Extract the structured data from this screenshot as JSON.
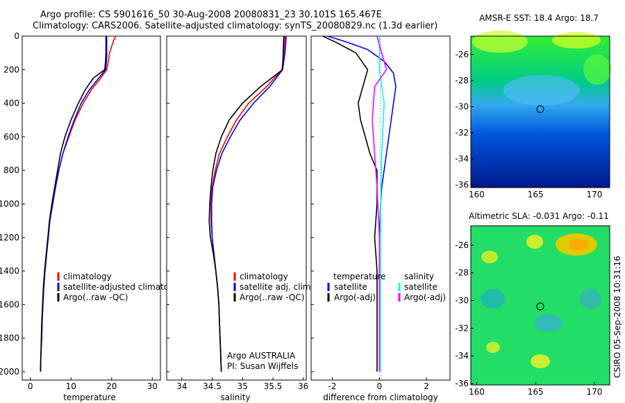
{
  "header": {
    "line1": "Argo profile: CS 5901616_50 30-Aug-2008 20080831_23 30.101S 165.467E",
    "line2": "Climatology: CARS2006. Satellite-adjusted climatology: synTS_20080829.nc (1.3d earlier)"
  },
  "side_label": "CSIRO 05-Sep-2008 10:31:16",
  "colors": {
    "climatology": "#ff0000",
    "satellite": "#0000ff",
    "argo": "#000000",
    "magenta": "#ff00ff",
    "cyan": "#00ffff"
  },
  "chart_data": [
    {
      "type": "line",
      "xlabel": "temperature",
      "xlim": [
        -2,
        32
      ],
      "xticks": [
        0,
        10,
        20,
        30
      ],
      "ylim": [
        0,
        2050
      ],
      "yticks": [
        0,
        200,
        400,
        600,
        800,
        1000,
        1200,
        1400,
        1600,
        1800,
        2000
      ],
      "legend": [
        "climatology",
        "satellite-adjusted climatology",
        "Argo(..raw -QC)"
      ],
      "series": [
        {
          "name": "climatology",
          "color": "red",
          "points": [
            [
              21,
              0
            ],
            [
              20.5,
              25
            ],
            [
              20,
              60
            ],
            [
              19.5,
              100
            ],
            [
              19.2,
              150
            ],
            [
              18.8,
              200
            ],
            [
              17,
              260
            ],
            [
              15,
              320
            ],
            [
              13,
              400
            ],
            [
              11,
              500
            ],
            [
              9.5,
              600
            ],
            [
              8,
              700
            ],
            [
              7,
              800
            ],
            [
              6.2,
              900
            ],
            [
              5.5,
              1000
            ],
            [
              4.8,
              1100
            ],
            [
              4.4,
              1200
            ],
            [
              4,
              1300
            ],
            [
              3.6,
              1400
            ],
            [
              3.3,
              1500
            ],
            [
              3.1,
              1600
            ],
            [
              2.9,
              1700
            ],
            [
              2.8,
              1800
            ],
            [
              2.6,
              1900
            ],
            [
              2.5,
              2000
            ]
          ]
        },
        {
          "name": "satellite-adjusted climatology",
          "color": "blue",
          "points": [
            [
              18.8,
              0
            ],
            [
              18.8,
              40
            ],
            [
              18.8,
              80
            ],
            [
              18.8,
              120
            ],
            [
              18.7,
              160
            ],
            [
              18.5,
              200
            ],
            [
              16.5,
              260
            ],
            [
              14.5,
              320
            ],
            [
              12.5,
              400
            ],
            [
              10.8,
              500
            ],
            [
              9.3,
              600
            ],
            [
              8,
              700
            ],
            [
              7,
              800
            ],
            [
              6.2,
              900
            ],
            [
              5.5,
              1000
            ],
            [
              4.8,
              1100
            ],
            [
              4.4,
              1200
            ],
            [
              4,
              1300
            ],
            [
              3.6,
              1400
            ],
            [
              3.3,
              1500
            ],
            [
              3.1,
              1600
            ],
            [
              2.9,
              1700
            ],
            [
              2.8,
              1800
            ],
            [
              2.6,
              1900
            ],
            [
              2.5,
              2000
            ]
          ]
        },
        {
          "name": "Argo(..raw -QC)",
          "color": "black",
          "points": [
            [
              18.6,
              0
            ],
            [
              18.6,
              50
            ],
            [
              18.6,
              100
            ],
            [
              18.5,
              150
            ],
            [
              18.3,
              200
            ],
            [
              15.5,
              250
            ],
            [
              13.5,
              320
            ],
            [
              11.8,
              400
            ],
            [
              10,
              500
            ],
            [
              8.5,
              600
            ],
            [
              7.4,
              700
            ],
            [
              6.7,
              800
            ],
            [
              6,
              900
            ],
            [
              5.3,
              1000
            ],
            [
              4.7,
              1100
            ],
            [
              4.3,
              1200
            ],
            [
              3.9,
              1300
            ],
            [
              3.5,
              1400
            ],
            [
              3.2,
              1500
            ],
            [
              3,
              1600
            ],
            [
              2.8,
              1700
            ],
            [
              2.7,
              1800
            ],
            [
              2.6,
              1900
            ],
            [
              2.5,
              2000
            ]
          ]
        }
      ]
    },
    {
      "type": "line",
      "xlabel": "salinity",
      "xlim": [
        33.75,
        36.05
      ],
      "xticks": [
        34,
        34.5,
        35,
        35.5,
        36
      ],
      "ylim": [
        0,
        2050
      ],
      "legend": [
        "climatology",
        "satellite adj. clim.",
        "Argo(..raw -QC)"
      ],
      "annotation": [
        "Argo AUSTRALIA",
        "PI: Susan Wijffels"
      ],
      "series": [
        {
          "name": "climatology",
          "color": "red",
          "points": [
            [
              35.7,
              0
            ],
            [
              35.68,
              100
            ],
            [
              35.65,
              200
            ],
            [
              35.4,
              300
            ],
            [
              35.1,
              400
            ],
            [
              34.9,
              500
            ],
            [
              34.75,
              600
            ],
            [
              34.62,
              700
            ],
            [
              34.55,
              800
            ],
            [
              34.5,
              900
            ],
            [
              34.48,
              1000
            ],
            [
              34.48,
              1100
            ],
            [
              34.5,
              1200
            ],
            [
              34.53,
              1300
            ],
            [
              34.56,
              1400
            ],
            [
              34.59,
              1500
            ],
            [
              34.61,
              1600
            ],
            [
              34.62,
              1700
            ],
            [
              34.63,
              1800
            ],
            [
              34.64,
              1900
            ],
            [
              34.65,
              2000
            ]
          ]
        },
        {
          "name": "satellite adj. clim.",
          "color": "blue",
          "points": [
            [
              35.72,
              0
            ],
            [
              35.7,
              100
            ],
            [
              35.66,
              200
            ],
            [
              35.45,
              300
            ],
            [
              35.18,
              400
            ],
            [
              34.96,
              500
            ],
            [
              34.8,
              600
            ],
            [
              34.66,
              700
            ],
            [
              34.57,
              800
            ],
            [
              34.51,
              900
            ],
            [
              34.49,
              1000
            ],
            [
              34.49,
              1100
            ],
            [
              34.5,
              1200
            ],
            [
              34.53,
              1300
            ],
            [
              34.56,
              1400
            ],
            [
              34.59,
              1500
            ],
            [
              34.61,
              1600
            ],
            [
              34.62,
              1700
            ],
            [
              34.63,
              1800
            ],
            [
              34.64,
              1900
            ],
            [
              34.65,
              2000
            ]
          ]
        },
        {
          "name": "Argo(..raw -QC)",
          "color": "black",
          "points": [
            [
              35.68,
              0
            ],
            [
              35.67,
              100
            ],
            [
              35.66,
              200
            ],
            [
              35.3,
              300
            ],
            [
              35.0,
              400
            ],
            [
              34.78,
              500
            ],
            [
              34.65,
              600
            ],
            [
              34.56,
              700
            ],
            [
              34.51,
              800
            ],
            [
              34.48,
              900
            ],
            [
              34.46,
              1000
            ],
            [
              34.45,
              1100
            ],
            [
              34.47,
              1200
            ],
            [
              34.52,
              1300
            ],
            [
              34.56,
              1400
            ],
            [
              34.59,
              1500
            ],
            [
              34.61,
              1600
            ],
            [
              34.62,
              1700
            ],
            [
              34.63,
              1800
            ],
            [
              34.64,
              1900
            ],
            [
              34.65,
              2000
            ]
          ]
        }
      ]
    },
    {
      "type": "line",
      "xlabel": "difference from climatology",
      "xlim": [
        -2.9,
        3.0
      ],
      "xticks": [
        -2,
        0,
        2
      ],
      "ylim": [
        0,
        2050
      ],
      "legend_left_title": "temperature",
      "legend_right_title": "salinity",
      "legend_left": [
        "satellite",
        "Argo(-adj)"
      ],
      "legend_right": [
        "satellite",
        "Argo(-adj)"
      ],
      "series": [
        {
          "name": "temperature satellite",
          "color": "blue",
          "points": [
            [
              -2.2,
              0
            ],
            [
              -1.5,
              30
            ],
            [
              -0.5,
              80
            ],
            [
              0.2,
              150
            ],
            [
              0.6,
              220
            ],
            [
              0.7,
              300
            ],
            [
              0.6,
              400
            ],
            [
              0.5,
              500
            ],
            [
              0.4,
              600
            ],
            [
              0.3,
              700
            ],
            [
              0.2,
              800
            ],
            [
              0.1,
              900
            ],
            [
              0.05,
              1000
            ],
            [
              0,
              1200
            ],
            [
              0,
              1600
            ],
            [
              0,
              2000
            ]
          ]
        },
        {
          "name": "temperature Argo(-adj)",
          "color": "black",
          "points": [
            [
              -2.4,
              0
            ],
            [
              -1.8,
              40
            ],
            [
              -1.0,
              100
            ],
            [
              -0.5,
              200
            ],
            [
              -0.7,
              300
            ],
            [
              -0.9,
              400
            ],
            [
              -0.8,
              500
            ],
            [
              -0.6,
              600
            ],
            [
              -0.4,
              700
            ],
            [
              -0.1,
              800
            ],
            [
              -0.1,
              1000
            ],
            [
              -0.2,
              1200
            ],
            [
              -0.1,
              1400
            ],
            [
              -0.1,
              1600
            ],
            [
              -0.1,
              2000
            ]
          ]
        },
        {
          "name": "salinity satellite",
          "color": "cyan",
          "points": [
            [
              0,
              0
            ],
            [
              0,
              200
            ],
            [
              0.2,
              400
            ],
            [
              0.1,
              700
            ],
            [
              0.05,
              1000
            ],
            [
              0.05,
              2000
            ]
          ]
        },
        {
          "name": "salinity Argo(-adj)",
          "color": "magenta",
          "points": [
            [
              -0.1,
              0
            ],
            [
              0.1,
              100
            ],
            [
              0.3,
              200
            ],
            [
              -0.2,
              300
            ],
            [
              -0.3,
              500
            ],
            [
              -0.2,
              700
            ],
            [
              -0.1,
              900
            ],
            [
              0,
              1200
            ],
            [
              0,
              2000
            ]
          ]
        }
      ]
    },
    {
      "type": "heatmap",
      "title": "AMSR-E SST: 18.4 Argo: 18.7",
      "xticks": [
        160,
        165,
        170
      ],
      "yticks": [
        -26,
        -28,
        -30,
        -32,
        -34,
        -36
      ],
      "marker": [
        165.467,
        -30.101
      ]
    },
    {
      "type": "heatmap",
      "title": "Altimetric SLA: -0.031 Argo: -0.11",
      "xticks": [
        160,
        165,
        170
      ],
      "yticks": [
        -26,
        -28,
        -30,
        -32,
        -34,
        -36
      ],
      "marker": [
        165.467,
        -30.101
      ]
    }
  ]
}
